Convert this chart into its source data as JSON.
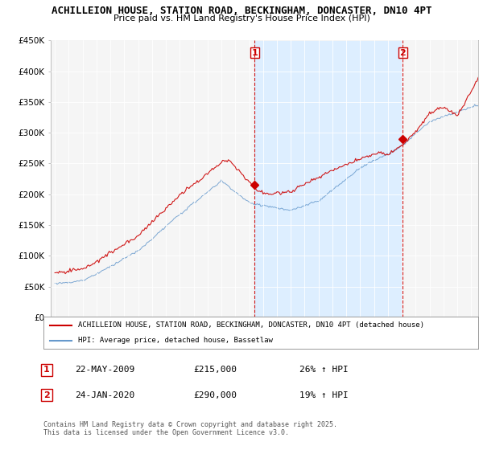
{
  "title": "ACHILLEION HOUSE, STATION ROAD, BECKINGHAM, DONCASTER, DN10 4PT",
  "subtitle": "Price paid vs. HM Land Registry's House Price Index (HPI)",
  "ylabel_ticks": [
    "£0",
    "£50K",
    "£100K",
    "£150K",
    "£200K",
    "£250K",
    "£300K",
    "£350K",
    "£400K",
    "£450K"
  ],
  "ylim": [
    0,
    450000
  ],
  "xlim_start": 1994.7,
  "xlim_end": 2025.5,
  "sale1_date": 2009.38,
  "sale2_date": 2020.07,
  "sale1_price": 215000,
  "sale2_price": 290000,
  "legend_red": "ACHILLEION HOUSE, STATION ROAD, BECKINGHAM, DONCASTER, DN10 4PT (detached house)",
  "legend_blue": "HPI: Average price, detached house, Bassetlaw",
  "annotation1_date": "22-MAY-2009",
  "annotation1_price": "£215,000",
  "annotation1_hpi": "26% ↑ HPI",
  "annotation2_date": "24-JAN-2020",
  "annotation2_price": "£290,000",
  "annotation2_hpi": "19% ↑ HPI",
  "footer": "Contains HM Land Registry data © Crown copyright and database right 2025.\nThis data is licensed under the Open Government Licence v3.0.",
  "background_color": "#ffffff",
  "plot_bg": "#f5f5f5",
  "between_bg": "#ddeeff",
  "red_color": "#cc0000",
  "blue_color": "#6699cc",
  "grid_color": "#ffffff"
}
